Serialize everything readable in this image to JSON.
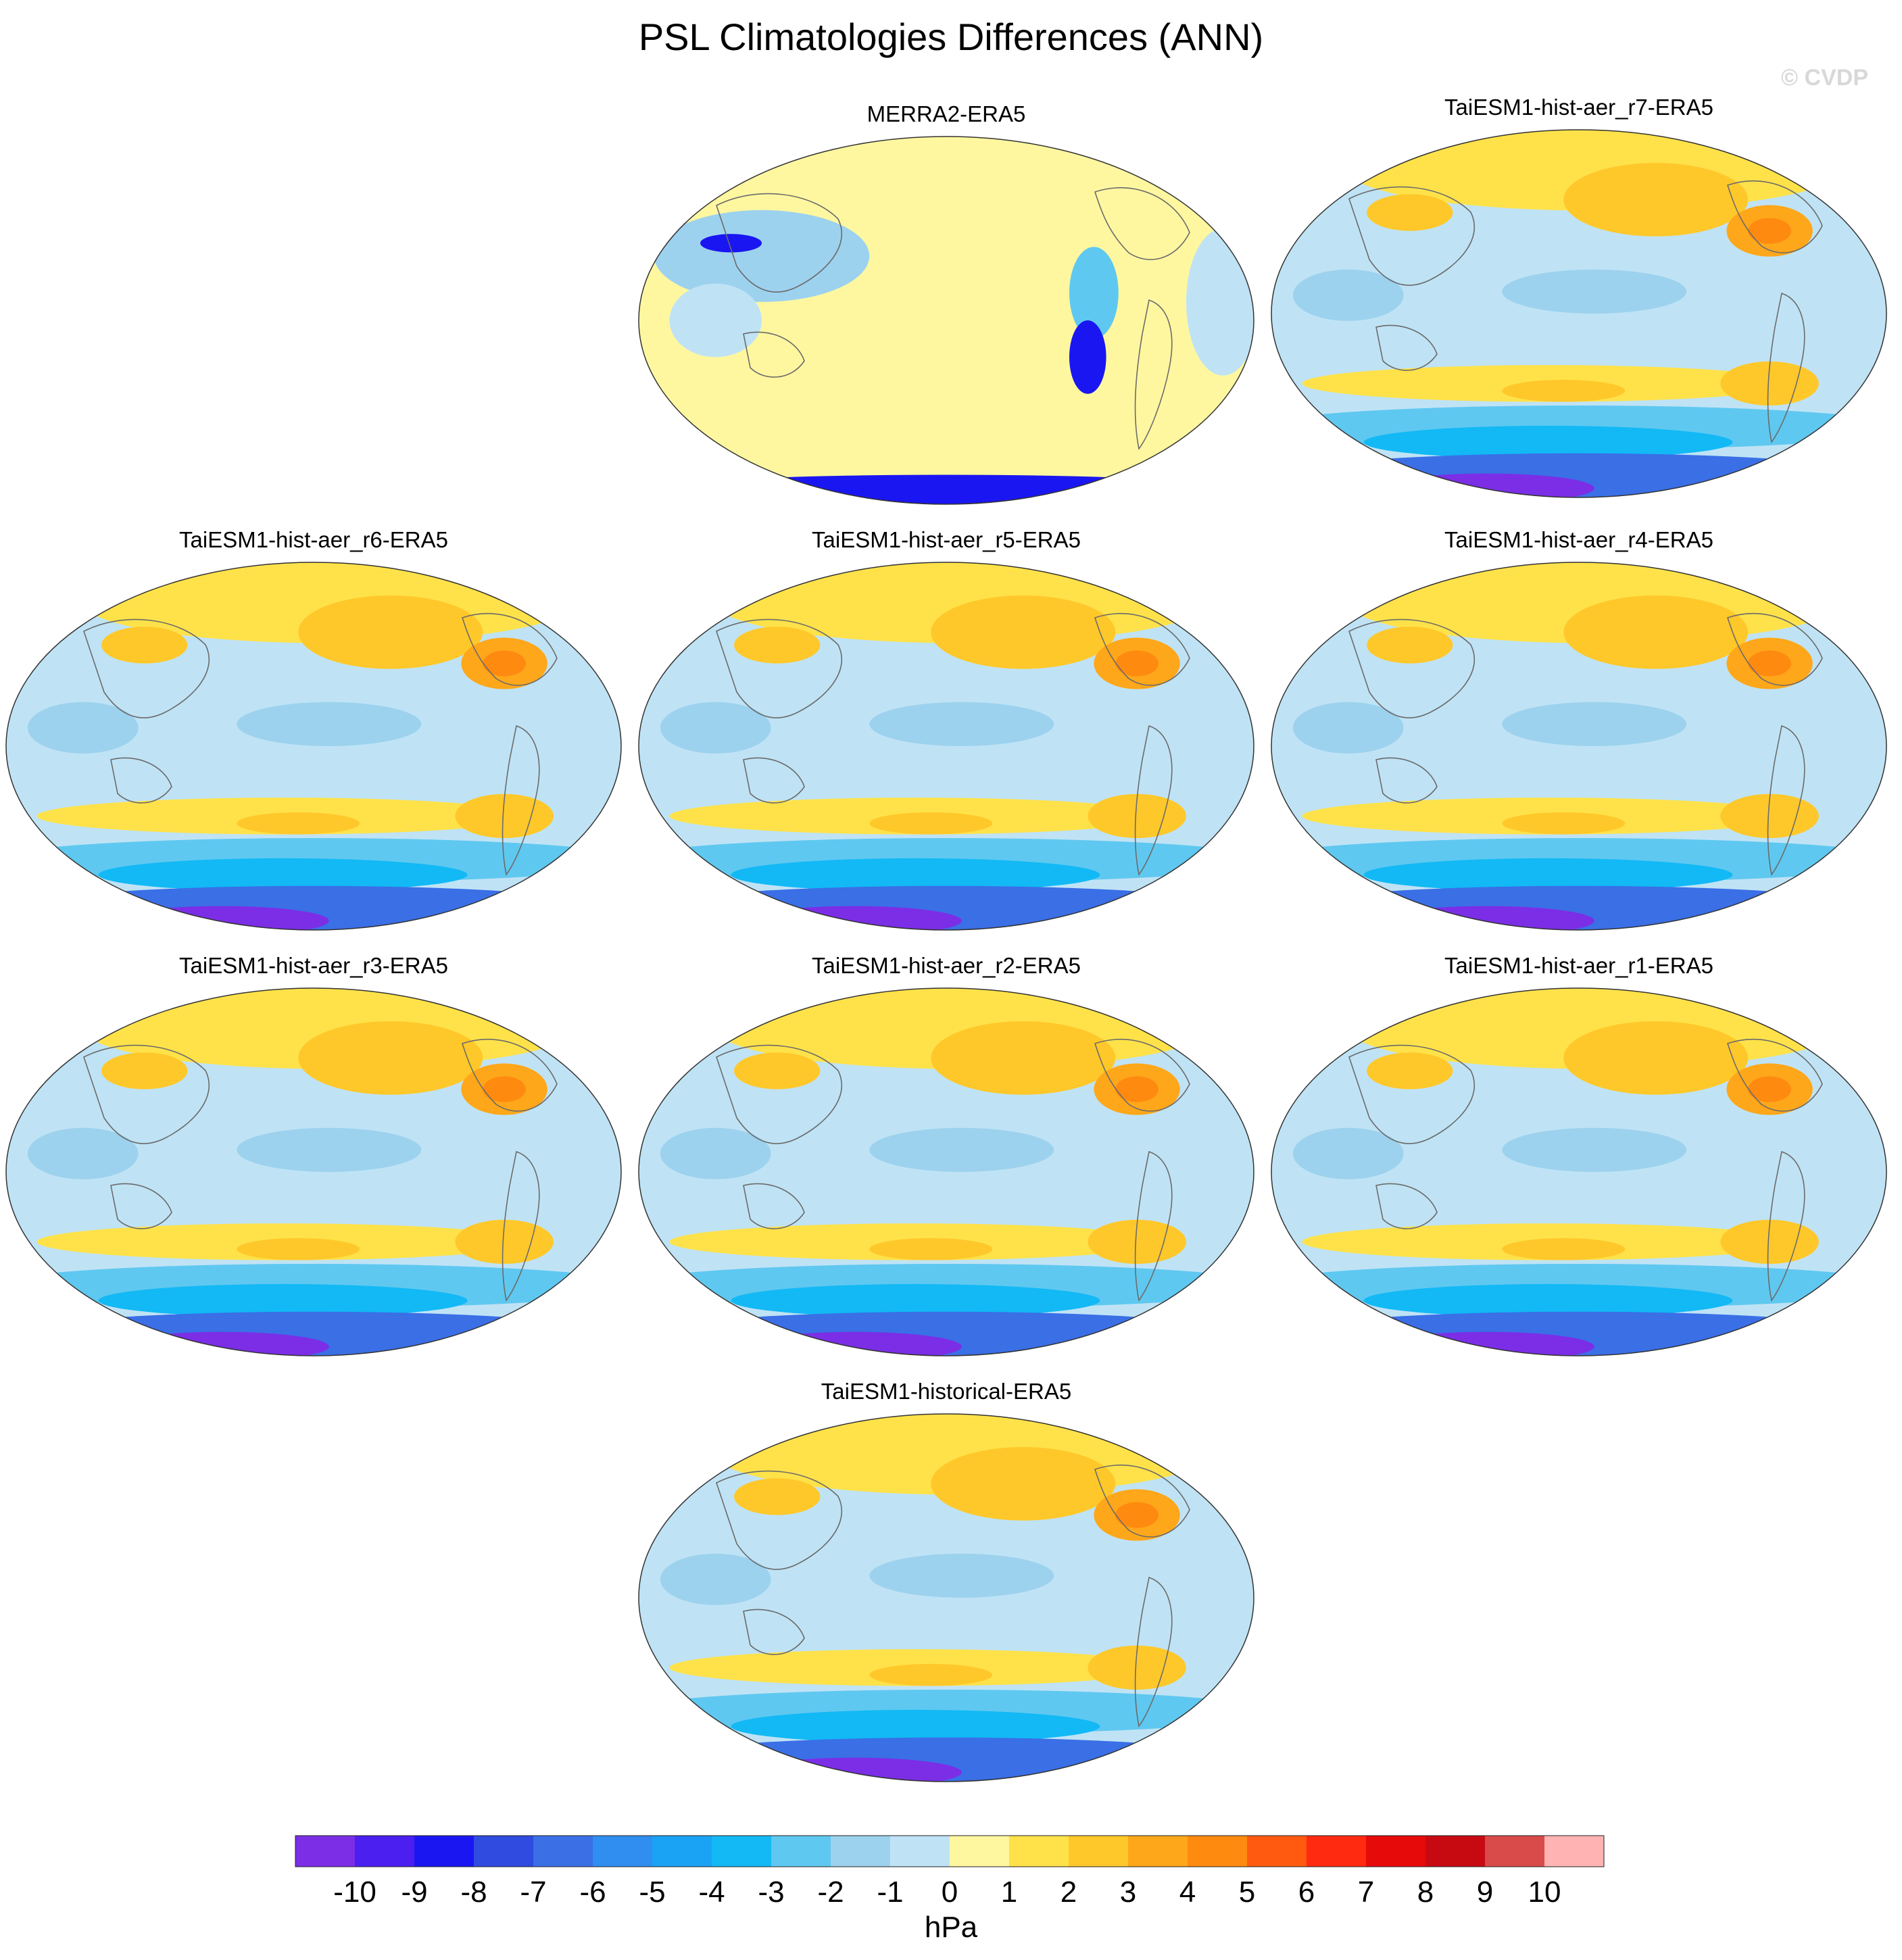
{
  "title": "PSL Climatologies Differences (ANN)",
  "watermark": "© CVDP",
  "chart_data": {
    "type": "heatmap",
    "title": "PSL Climatologies Differences (ANN)",
    "units": "hPa",
    "projection": "Robinson, Pacific-centered",
    "panels": [
      {
        "label": "MERRA2-ERA5",
        "pattern": "merra"
      },
      {
        "label": "TaiESM1-hist-aer_r7-ERA5",
        "pattern": "model"
      },
      {
        "label": "TaiESM1-hist-aer_r6-ERA5",
        "pattern": "model"
      },
      {
        "label": "TaiESM1-hist-aer_r5-ERA5",
        "pattern": "model"
      },
      {
        "label": "TaiESM1-hist-aer_r4-ERA5",
        "pattern": "model"
      },
      {
        "label": "TaiESM1-hist-aer_r3-ERA5",
        "pattern": "model"
      },
      {
        "label": "TaiESM1-hist-aer_r2-ERA5",
        "pattern": "model"
      },
      {
        "label": "TaiESM1-hist-aer_r1-ERA5",
        "pattern": "model"
      },
      {
        "label": "TaiESM1-historical-ERA5",
        "pattern": "model"
      }
    ],
    "colorbar": {
      "label": "hPa",
      "tick_labels": [
        "-10",
        "-9",
        "-8",
        "-7",
        "-6",
        "-5",
        "-4",
        "-3",
        "-2",
        "-1",
        "0",
        "1",
        "2",
        "3",
        "4",
        "5",
        "6",
        "7",
        "8",
        "9",
        "10"
      ],
      "colors": [
        "#7b2ee6",
        "#4a1ff0",
        "#1a16f2",
        "#2f4be0",
        "#3a6fe6",
        "#2f8ef0",
        "#1aa2f5",
        "#12b9f5",
        "#5fc8f0",
        "#9dd2ee",
        "#bfe3f5",
        "#fff7a0",
        "#ffe24a",
        "#ffc82a",
        "#ffa71a",
        "#ff8a10",
        "#ff5a10",
        "#ff2a10",
        "#e60a0a",
        "#c70a12",
        "#d94a4a",
        "#ffb3b3"
      ]
    }
  }
}
